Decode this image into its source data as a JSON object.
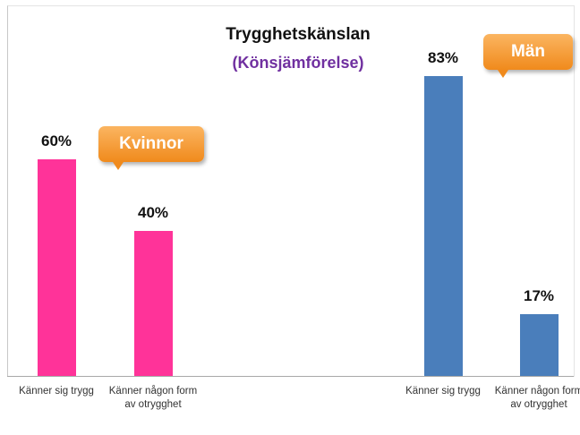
{
  "chart_data": {
    "type": "bar",
    "title": "Trygghetskänslan",
    "subtitle": "(Könsjämförelse)",
    "categories": [
      "Känner sig trygg",
      "Känner någon form av otrygghet",
      "Känner sig trygg",
      "Känner någon form av otrygghet"
    ],
    "series": [
      {
        "name": "Kvinnor",
        "color": "#ff3399",
        "values": [
          60,
          40,
          null,
          null
        ],
        "value_labels": [
          "60%",
          "40%",
          null,
          null
        ]
      },
      {
        "name": "Män",
        "color": "#4a7ebb",
        "values": [
          null,
          null,
          83,
          17
        ],
        "value_labels": [
          null,
          null,
          "83%",
          "17%"
        ]
      }
    ]
  }
}
